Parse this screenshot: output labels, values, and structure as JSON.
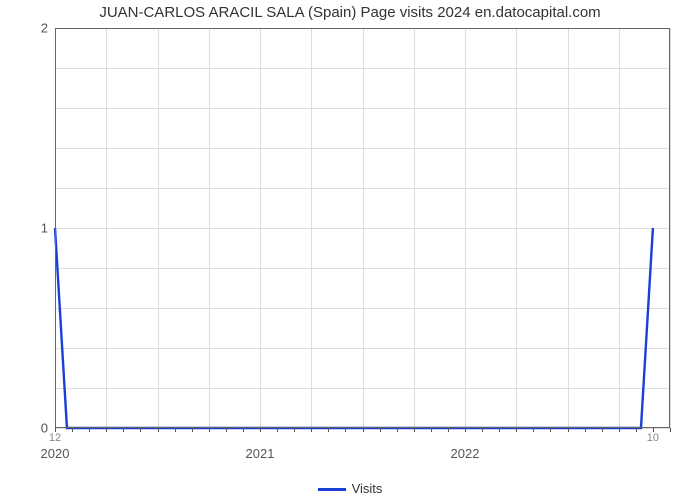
{
  "chart": {
    "type": "line",
    "title": "JUAN-CARLOS ARACIL SALA (Spain) Page visits 2024 en.datocapital.com",
    "title_fontsize": 15,
    "title_color": "#333333",
    "background_color": "#ffffff",
    "plot_border_color": "#666666",
    "grid_color": "#dddddd",
    "x": {
      "range_months": 36,
      "major_ticks": [
        {
          "month": 0,
          "label": "2020"
        },
        {
          "month": 12,
          "label": "2021"
        },
        {
          "month": 24,
          "label": "2022"
        }
      ],
      "start_minor": {
        "month": 0,
        "label": "12"
      },
      "end_minor": {
        "month": 35,
        "label": "10"
      },
      "minor_tick_every_month": true,
      "n_major_gridlines": 12
    },
    "y": {
      "ylim": [
        0,
        2
      ],
      "ticks": [
        0,
        1,
        2
      ],
      "n_minor_gridlines_between": 4
    },
    "series": [
      {
        "name": "Visits",
        "color": "#1a3fd6",
        "line_width": 2.4,
        "points_month_value": [
          [
            0,
            1.0
          ],
          [
            0.7,
            0.0
          ],
          [
            34.3,
            0.0
          ],
          [
            35,
            1.0
          ]
        ]
      }
    ],
    "legend": {
      "label": "Visits",
      "position": "bottom-center",
      "swatch_color": "#1a3fd6"
    }
  }
}
